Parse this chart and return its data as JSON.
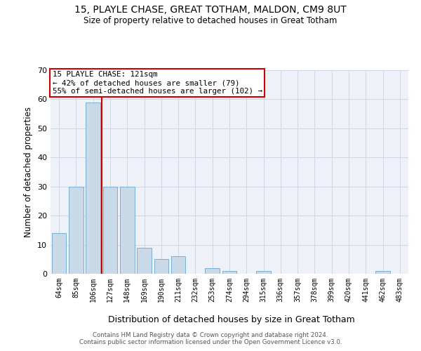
{
  "title": "15, PLAYLE CHASE, GREAT TOTHAM, MALDON, CM9 8UT",
  "subtitle": "Size of property relative to detached houses in Great Totham",
  "xlabel": "Distribution of detached houses by size in Great Totham",
  "ylabel": "Number of detached properties",
  "categories": [
    "64sqm",
    "85sqm",
    "106sqm",
    "127sqm",
    "148sqm",
    "169sqm",
    "190sqm",
    "211sqm",
    "232sqm",
    "253sqm",
    "274sqm",
    "294sqm",
    "315sqm",
    "336sqm",
    "357sqm",
    "378sqm",
    "399sqm",
    "420sqm",
    "441sqm",
    "462sqm",
    "483sqm"
  ],
  "values": [
    14,
    30,
    59,
    30,
    30,
    9,
    5,
    6,
    0,
    2,
    1,
    0,
    1,
    0,
    0,
    0,
    0,
    0,
    0,
    1,
    0
  ],
  "bar_color": "#c9d9e8",
  "bar_edge_color": "#7bafd4",
  "grid_color": "#d0d8e8",
  "background_color": "#eef2f8",
  "vline_color": "#cc0000",
  "annotation_text": "15 PLAYLE CHASE: 121sqm\n← 42% of detached houses are smaller (79)\n55% of semi-detached houses are larger (102) →",
  "annotation_box_color": "#ffffff",
  "annotation_box_edge": "#cc0000",
  "footer1": "Contains HM Land Registry data © Crown copyright and database right 2024.",
  "footer2": "Contains public sector information licensed under the Open Government Licence v3.0.",
  "ylim": [
    0,
    70
  ],
  "yticks": [
    0,
    10,
    20,
    30,
    40,
    50,
    60,
    70
  ],
  "vline_pos": 2.5
}
